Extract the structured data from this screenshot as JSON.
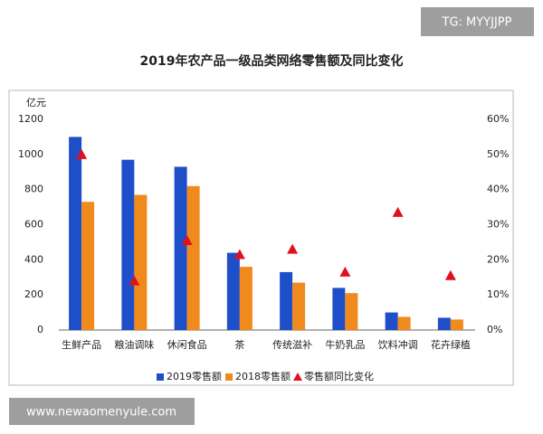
{
  "chart_data": {
    "type": "bar",
    "title": "2019年农产品一级品类网络零售额及同比变化",
    "y_unit": "亿元",
    "categories": [
      "生鲜产品",
      "粮油调味",
      "休闲食品",
      "茶",
      "传统滋补",
      "牛奶乳品",
      "饮料冲调",
      "花卉绿植"
    ],
    "series": [
      {
        "name": "2019零售额",
        "color": "#1f4fc8",
        "values": [
          1100,
          970,
          930,
          440,
          330,
          240,
          100,
          70
        ]
      },
      {
        "name": "2018零售额",
        "color": "#f08a1c",
        "values": [
          730,
          770,
          820,
          360,
          270,
          210,
          75,
          60
        ]
      },
      {
        "name": "零售额同比变化",
        "color": "#e0101e",
        "type": "scatter",
        "axis": "y2",
        "values": [
          50,
          14,
          25.5,
          21.5,
          23,
          16.5,
          33.5,
          15.5
        ]
      }
    ],
    "ylim": [
      0,
      1200
    ],
    "yticks": [
      0,
      200,
      400,
      600,
      800,
      1000,
      1200
    ],
    "y2lim": [
      0,
      60
    ],
    "y2ticks": [
      {
        "value": 0,
        "label": "0%"
      },
      {
        "value": 10,
        "label": "10%"
      },
      {
        "value": 20,
        "label": "20%"
      },
      {
        "value": 30,
        "label": "30%"
      },
      {
        "value": 40,
        "label": "40%"
      },
      {
        "value": 50,
        "label": "50%"
      },
      {
        "value": 60,
        "label": "60%"
      }
    ],
    "grid": false,
    "legend": "bottom"
  },
  "watermarks": [
    "TG: MYYJJPP",
    "www.newaomenyule.com"
  ]
}
